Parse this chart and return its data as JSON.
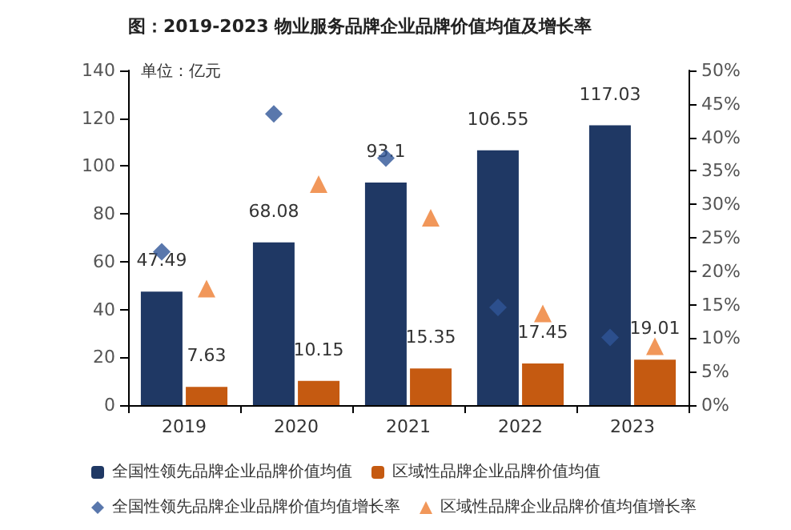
{
  "chart_data": {
    "type": "bar",
    "title": "图：2019-2023 物业服务品牌企业品牌价值均值及增长率",
    "categories": [
      "2019",
      "2020",
      "2021",
      "2022",
      "2023"
    ],
    "series": [
      {
        "name": "全国性领先品牌企业品牌价值均值",
        "color": "#1f3864",
        "values": [
          47.49,
          68.08,
          93.1,
          106.55,
          117.03
        ],
        "value_labels": [
          "47.49",
          "68.08",
          "93.1",
          "106.55",
          "117.03"
        ]
      },
      {
        "name": "区域性品牌企业品牌价值均值",
        "color": "#c55a11",
        "values": [
          7.63,
          10.15,
          15.35,
          17.45,
          19.01
        ],
        "value_labels": [
          "7.63",
          "10.15",
          "15.35",
          "17.45",
          "19.01"
        ]
      },
      {
        "name": "全国性领先品牌企业品牌价值均值增长率",
        "type": "scatter",
        "axis": "y2",
        "marker": "diamond",
        "color": "#2f5597",
        "values": [
          22.9,
          43.5,
          36.9,
          14.6,
          10.1
        ]
      },
      {
        "name": "区域性品牌企业品牌价值均值增长率",
        "type": "scatter",
        "axis": "y2",
        "marker": "triangle",
        "color": "#ed7d31",
        "values": [
          17.4,
          33.0,
          28.0,
          13.7,
          8.8
        ]
      }
    ],
    "ylim": [
      0,
      140
    ],
    "yticks": [
      0,
      20,
      40,
      60,
      80,
      100,
      120,
      140
    ],
    "y2lim": [
      0,
      50
    ],
    "y2ticks": [
      {
        "value": 0,
        "label": "0%"
      },
      {
        "value": 5,
        "label": "5%"
      },
      {
        "value": 10,
        "label": "10%"
      },
      {
        "value": 15,
        "label": "15%"
      },
      {
        "value": 20,
        "label": "20%"
      },
      {
        "value": 25,
        "label": "25%"
      },
      {
        "value": 30,
        "label": "30%"
      },
      {
        "value": 35,
        "label": "35%"
      },
      {
        "value": 40,
        "label": "40%"
      },
      {
        "value": 45,
        "label": "45%"
      },
      {
        "value": 50,
        "label": "50%"
      }
    ],
    "annotations": [
      "单位：亿元"
    ],
    "grid": false,
    "legend": "bottom"
  }
}
